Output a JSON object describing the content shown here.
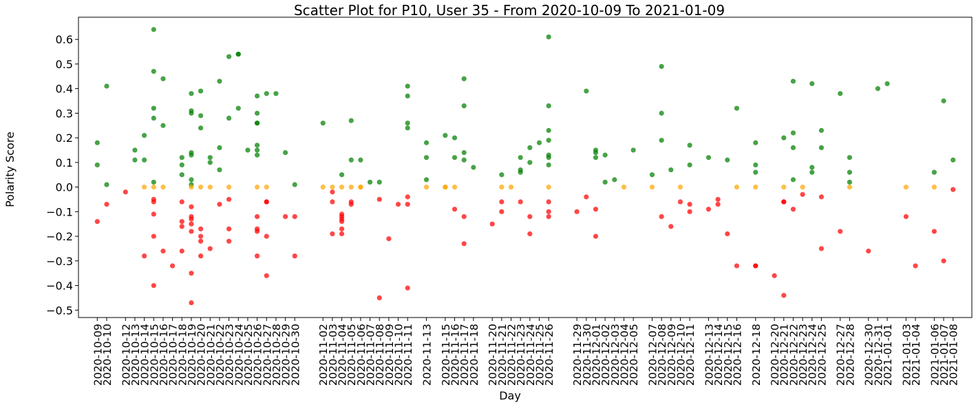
{
  "chart_data": {
    "type": "scatter",
    "title": "Scatter Plot for P10, User 35 - From 2020-10-09 To 2021-01-09",
    "xlabel": "Day",
    "ylabel": "Polarity Score",
    "ylim": [
      -0.53,
      0.69
    ],
    "yticks": [
      -0.5,
      -0.4,
      -0.3,
      -0.2,
      -0.1,
      0.0,
      0.1,
      0.2,
      0.3,
      0.4,
      0.5,
      0.6
    ],
    "ytick_labels": [
      "−0.5",
      "−0.4",
      "−0.3",
      "−0.2",
      "−0.1",
      "0.0",
      "0.1",
      "0.2",
      "0.3",
      "0.4",
      "0.5",
      "0.6"
    ],
    "xlim": [
      "2020-10-07",
      "2021-01-10"
    ],
    "grid": false,
    "colors": {
      "positive": "#008000",
      "neutral": "#FFA500",
      "negative": "#FF0000"
    },
    "categories": [
      "2020-10-09",
      "2020-10-10",
      "2020-10-12",
      "2020-10-13",
      "2020-10-14",
      "2020-10-15",
      "2020-10-16",
      "2020-10-17",
      "2020-10-18",
      "2020-10-19",
      "2020-10-20",
      "2020-10-21",
      "2020-10-22",
      "2020-10-23",
      "2020-10-24",
      "2020-10-25",
      "2020-10-26",
      "2020-10-27",
      "2020-10-28",
      "2020-10-29",
      "2020-10-30",
      "2020-11-02",
      "2020-11-03",
      "2020-11-04",
      "2020-11-05",
      "2020-11-06",
      "2020-11-07",
      "2020-11-08",
      "2020-11-09",
      "2020-11-10",
      "2020-11-11",
      "2020-11-13",
      "2020-11-15",
      "2020-11-16",
      "2020-11-17",
      "2020-11-18",
      "2020-11-20",
      "2020-11-21",
      "2020-11-22",
      "2020-11-23",
      "2020-11-24",
      "2020-11-25",
      "2020-11-26",
      "2020-11-29",
      "2020-11-30",
      "2020-12-01",
      "2020-12-02",
      "2020-12-03",
      "2020-12-04",
      "2020-12-05",
      "2020-12-07",
      "2020-12-08",
      "2020-12-09",
      "2020-12-10",
      "2020-12-11",
      "2020-12-13",
      "2020-12-14",
      "2020-12-15",
      "2020-12-16",
      "2020-12-18",
      "2020-12-20",
      "2020-12-21",
      "2020-12-22",
      "2020-12-23",
      "2020-12-24",
      "2020-12-25",
      "2020-12-27",
      "2020-12-28",
      "2020-12-30",
      "2020-12-31",
      "2021-01-01",
      "2021-01-03",
      "2021-01-04",
      "2021-01-06",
      "2021-01-07",
      "2021-01-08"
    ],
    "points": [
      [
        "2020-10-09",
        0.18
      ],
      [
        "2020-10-09",
        0.09
      ],
      [
        "2020-10-09",
        -0.14
      ],
      [
        "2020-10-10",
        0.41
      ],
      [
        "2020-10-10",
        0.01
      ],
      [
        "2020-10-10",
        -0.07
      ],
      [
        "2020-10-12",
        -0.02
      ],
      [
        "2020-10-13",
        0.15
      ],
      [
        "2020-10-13",
        0.11
      ],
      [
        "2020-10-14",
        0.21
      ],
      [
        "2020-10-14",
        0.11
      ],
      [
        "2020-10-14",
        0.0
      ],
      [
        "2020-10-14",
        -0.28
      ],
      [
        "2020-10-15",
        0.64
      ],
      [
        "2020-10-15",
        0.47
      ],
      [
        "2020-10-15",
        0.32
      ],
      [
        "2020-10-15",
        0.28
      ],
      [
        "2020-10-15",
        0.02
      ],
      [
        "2020-10-15",
        0.0
      ],
      [
        "2020-10-15",
        -0.05
      ],
      [
        "2020-10-15",
        -0.06
      ],
      [
        "2020-10-15",
        -0.11
      ],
      [
        "2020-10-15",
        -0.2
      ],
      [
        "2020-10-15",
        -0.4
      ],
      [
        "2020-10-16",
        0.44
      ],
      [
        "2020-10-16",
        0.25
      ],
      [
        "2020-10-16",
        0.0
      ],
      [
        "2020-10-16",
        -0.26
      ],
      [
        "2020-10-17",
        -0.32
      ],
      [
        "2020-10-18",
        0.12
      ],
      [
        "2020-10-18",
        0.09
      ],
      [
        "2020-10-18",
        0.05
      ],
      [
        "2020-10-18",
        -0.06
      ],
      [
        "2020-10-18",
        -0.14
      ],
      [
        "2020-10-18",
        -0.16
      ],
      [
        "2020-10-18",
        -0.26
      ],
      [
        "2020-10-19",
        0.38
      ],
      [
        "2020-10-19",
        0.31
      ],
      [
        "2020-10-19",
        0.3
      ],
      [
        "2020-10-19",
        0.14
      ],
      [
        "2020-10-19",
        0.13
      ],
      [
        "2020-10-19",
        0.03
      ],
      [
        "2020-10-19",
        0.01
      ],
      [
        "2020-10-19",
        0.0
      ],
      [
        "2020-10-19",
        -0.08
      ],
      [
        "2020-10-19",
        -0.12
      ],
      [
        "2020-10-19",
        -0.13
      ],
      [
        "2020-10-19",
        -0.15
      ],
      [
        "2020-10-19",
        -0.18
      ],
      [
        "2020-10-19",
        -0.35
      ],
      [
        "2020-10-19",
        -0.47
      ],
      [
        "2020-10-20",
        0.39
      ],
      [
        "2020-10-20",
        0.29
      ],
      [
        "2020-10-20",
        0.24
      ],
      [
        "2020-10-20",
        0.0
      ],
      [
        "2020-10-20",
        -0.17
      ],
      [
        "2020-10-20",
        -0.2
      ],
      [
        "2020-10-20",
        -0.22
      ],
      [
        "2020-10-20",
        -0.28
      ],
      [
        "2020-10-21",
        0.12
      ],
      [
        "2020-10-21",
        0.1
      ],
      [
        "2020-10-21",
        0.0
      ],
      [
        "2020-10-21",
        -0.25
      ],
      [
        "2020-10-22",
        0.43
      ],
      [
        "2020-10-22",
        0.16
      ],
      [
        "2020-10-22",
        0.07
      ],
      [
        "2020-10-22",
        -0.07
      ],
      [
        "2020-10-23",
        0.53
      ],
      [
        "2020-10-23",
        0.28
      ],
      [
        "2020-10-23",
        0.0
      ],
      [
        "2020-10-23",
        -0.05
      ],
      [
        "2020-10-23",
        -0.17
      ],
      [
        "2020-10-23",
        -0.22
      ],
      [
        "2020-10-24",
        0.54
      ],
      [
        "2020-10-24",
        0.54
      ],
      [
        "2020-10-24",
        0.32
      ],
      [
        "2020-10-25",
        0.15
      ],
      [
        "2020-10-26",
        0.37
      ],
      [
        "2020-10-26",
        0.3
      ],
      [
        "2020-10-26",
        0.26
      ],
      [
        "2020-10-26",
        0.26
      ],
      [
        "2020-10-26",
        0.17
      ],
      [
        "2020-10-26",
        0.15
      ],
      [
        "2020-10-26",
        0.13
      ],
      [
        "2020-10-26",
        0.0
      ],
      [
        "2020-10-26",
        -0.12
      ],
      [
        "2020-10-26",
        -0.17
      ],
      [
        "2020-10-26",
        -0.18
      ],
      [
        "2020-10-26",
        -0.28
      ],
      [
        "2020-10-27",
        0.38
      ],
      [
        "2020-10-27",
        0.0
      ],
      [
        "2020-10-27",
        -0.06
      ],
      [
        "2020-10-27",
        -0.06
      ],
      [
        "2020-10-27",
        -0.2
      ],
      [
        "2020-10-27",
        -0.36
      ],
      [
        "2020-10-28",
        0.38
      ],
      [
        "2020-10-29",
        0.14
      ],
      [
        "2020-10-29",
        -0.12
      ],
      [
        "2020-10-30",
        0.01
      ],
      [
        "2020-10-30",
        -0.12
      ],
      [
        "2020-10-30",
        -0.28
      ],
      [
        "2020-11-02",
        0.26
      ],
      [
        "2020-11-02",
        0.0
      ],
      [
        "2020-11-03",
        0.0
      ],
      [
        "2020-11-03",
        -0.02
      ],
      [
        "2020-11-03",
        -0.06
      ],
      [
        "2020-11-03",
        -0.19
      ],
      [
        "2020-11-04",
        0.05
      ],
      [
        "2020-11-04",
        0.0
      ],
      [
        "2020-11-04",
        -0.11
      ],
      [
        "2020-11-04",
        -0.12
      ],
      [
        "2020-11-04",
        -0.13
      ],
      [
        "2020-11-04",
        -0.14
      ],
      [
        "2020-11-04",
        -0.17
      ],
      [
        "2020-11-04",
        -0.19
      ],
      [
        "2020-11-05",
        0.27
      ],
      [
        "2020-11-05",
        0.11
      ],
      [
        "2020-11-05",
        0.0
      ],
      [
        "2020-11-05",
        -0.06
      ],
      [
        "2020-11-05",
        -0.07
      ],
      [
        "2020-11-06",
        0.11
      ],
      [
        "2020-11-06",
        0.0
      ],
      [
        "2020-11-06",
        0.0
      ],
      [
        "2020-11-07",
        0.02
      ],
      [
        "2020-11-08",
        0.02
      ],
      [
        "2020-11-08",
        -0.05
      ],
      [
        "2020-11-08",
        -0.45
      ],
      [
        "2020-11-09",
        -0.21
      ],
      [
        "2020-11-10",
        -0.07
      ],
      [
        "2020-11-11",
        0.41
      ],
      [
        "2020-11-11",
        0.37
      ],
      [
        "2020-11-11",
        0.26
      ],
      [
        "2020-11-11",
        0.24
      ],
      [
        "2020-11-11",
        -0.04
      ],
      [
        "2020-11-11",
        -0.07
      ],
      [
        "2020-11-11",
        -0.41
      ],
      [
        "2020-11-13",
        0.18
      ],
      [
        "2020-11-13",
        0.12
      ],
      [
        "2020-11-13",
        0.03
      ],
      [
        "2020-11-13",
        0.0
      ],
      [
        "2020-11-15",
        0.21
      ],
      [
        "2020-11-15",
        0.0
      ],
      [
        "2020-11-15",
        0.0
      ],
      [
        "2020-11-16",
        0.2
      ],
      [
        "2020-11-16",
        0.12
      ],
      [
        "2020-11-16",
        0.0
      ],
      [
        "2020-11-16",
        -0.09
      ],
      [
        "2020-11-17",
        0.44
      ],
      [
        "2020-11-17",
        0.33
      ],
      [
        "2020-11-17",
        0.14
      ],
      [
        "2020-11-17",
        0.11
      ],
      [
        "2020-11-17",
        -0.12
      ],
      [
        "2020-11-17",
        -0.23
      ],
      [
        "2020-11-18",
        0.08
      ],
      [
        "2020-11-20",
        -0.15
      ],
      [
        "2020-11-21",
        0.05
      ],
      [
        "2020-11-21",
        0.0
      ],
      [
        "2020-11-21",
        -0.06
      ],
      [
        "2020-11-21",
        -0.1
      ],
      [
        "2020-11-22",
        0.0
      ],
      [
        "2020-11-23",
        0.12
      ],
      [
        "2020-11-23",
        0.07
      ],
      [
        "2020-11-23",
        0.06
      ],
      [
        "2020-11-23",
        -0.06
      ],
      [
        "2020-11-24",
        0.16
      ],
      [
        "2020-11-24",
        0.1
      ],
      [
        "2020-11-24",
        -0.12
      ],
      [
        "2020-11-24",
        -0.19
      ],
      [
        "2020-11-25",
        0.18
      ],
      [
        "2020-11-26",
        0.61
      ],
      [
        "2020-11-26",
        0.33
      ],
      [
        "2020-11-26",
        0.23
      ],
      [
        "2020-11-26",
        0.19
      ],
      [
        "2020-11-26",
        0.13
      ],
      [
        "2020-11-26",
        0.12
      ],
      [
        "2020-11-26",
        0.09
      ],
      [
        "2020-11-26",
        0.0
      ],
      [
        "2020-11-26",
        -0.06
      ],
      [
        "2020-11-26",
        -0.1
      ],
      [
        "2020-11-26",
        -0.12
      ],
      [
        "2020-11-29",
        -0.1
      ],
      [
        "2020-11-30",
        0.39
      ],
      [
        "2020-11-30",
        -0.04
      ],
      [
        "2020-12-01",
        0.15
      ],
      [
        "2020-12-01",
        0.14
      ],
      [
        "2020-12-01",
        0.12
      ],
      [
        "2020-12-01",
        -0.09
      ],
      [
        "2020-12-01",
        -0.2
      ],
      [
        "2020-12-02",
        0.13
      ],
      [
        "2020-12-02",
        0.02
      ],
      [
        "2020-12-03",
        0.03
      ],
      [
        "2020-12-04",
        0.0
      ],
      [
        "2020-12-05",
        0.15
      ],
      [
        "2020-12-07",
        0.05
      ],
      [
        "2020-12-07",
        0.0
      ],
      [
        "2020-12-08",
        0.49
      ],
      [
        "2020-12-08",
        0.3
      ],
      [
        "2020-12-08",
        0.19
      ],
      [
        "2020-12-08",
        -0.12
      ],
      [
        "2020-12-09",
        0.07
      ],
      [
        "2020-12-09",
        -0.16
      ],
      [
        "2020-12-10",
        0.0
      ],
      [
        "2020-12-10",
        -0.06
      ],
      [
        "2020-12-11",
        0.17
      ],
      [
        "2020-12-11",
        0.09
      ],
      [
        "2020-12-11",
        -0.07
      ],
      [
        "2020-12-11",
        -0.1
      ],
      [
        "2020-12-13",
        0.12
      ],
      [
        "2020-12-13",
        -0.09
      ],
      [
        "2020-12-14",
        -0.05
      ],
      [
        "2020-12-14",
        -0.07
      ],
      [
        "2020-12-15",
        0.11
      ],
      [
        "2020-12-15",
        -0.19
      ],
      [
        "2020-12-16",
        0.32
      ],
      [
        "2020-12-16",
        0.0
      ],
      [
        "2020-12-16",
        -0.32
      ],
      [
        "2020-12-18",
        0.18
      ],
      [
        "2020-12-18",
        0.09
      ],
      [
        "2020-12-18",
        0.06
      ],
      [
        "2020-12-18",
        0.0
      ],
      [
        "2020-12-18",
        -0.32
      ],
      [
        "2020-12-18",
        -0.32
      ],
      [
        "2020-12-20",
        -0.36
      ],
      [
        "2020-12-21",
        0.2
      ],
      [
        "2020-12-21",
        0.0
      ],
      [
        "2020-12-21",
        -0.06
      ],
      [
        "2020-12-21",
        -0.06
      ],
      [
        "2020-12-21",
        -0.44
      ],
      [
        "2020-12-22",
        0.43
      ],
      [
        "2020-12-22",
        0.22
      ],
      [
        "2020-12-22",
        0.16
      ],
      [
        "2020-12-22",
        0.03
      ],
      [
        "2020-12-22",
        -0.09
      ],
      [
        "2020-12-23",
        0.0
      ],
      [
        "2020-12-23",
        -0.03
      ],
      [
        "2020-12-24",
        0.42
      ],
      [
        "2020-12-24",
        0.08
      ],
      [
        "2020-12-24",
        0.06
      ],
      [
        "2020-12-25",
        0.23
      ],
      [
        "2020-12-25",
        0.16
      ],
      [
        "2020-12-25",
        -0.04
      ],
      [
        "2020-12-25",
        -0.25
      ],
      [
        "2020-12-27",
        0.38
      ],
      [
        "2020-12-27",
        -0.18
      ],
      [
        "2020-12-28",
        0.12
      ],
      [
        "2020-12-28",
        0.06
      ],
      [
        "2020-12-28",
        0.02
      ],
      [
        "2020-12-28",
        0.0
      ],
      [
        "2020-12-30",
        -0.26
      ],
      [
        "2020-12-31",
        0.4
      ],
      [
        "2021-01-01",
        0.42
      ],
      [
        "2021-01-03",
        0.0
      ],
      [
        "2021-01-03",
        -0.12
      ],
      [
        "2021-01-04",
        -0.32
      ],
      [
        "2021-01-06",
        0.06
      ],
      [
        "2021-01-06",
        0.0
      ],
      [
        "2021-01-06",
        -0.18
      ],
      [
        "2021-01-07",
        0.35
      ],
      [
        "2021-01-07",
        -0.3
      ],
      [
        "2021-01-08",
        0.11
      ],
      [
        "2021-01-08",
        -0.01
      ]
    ]
  }
}
